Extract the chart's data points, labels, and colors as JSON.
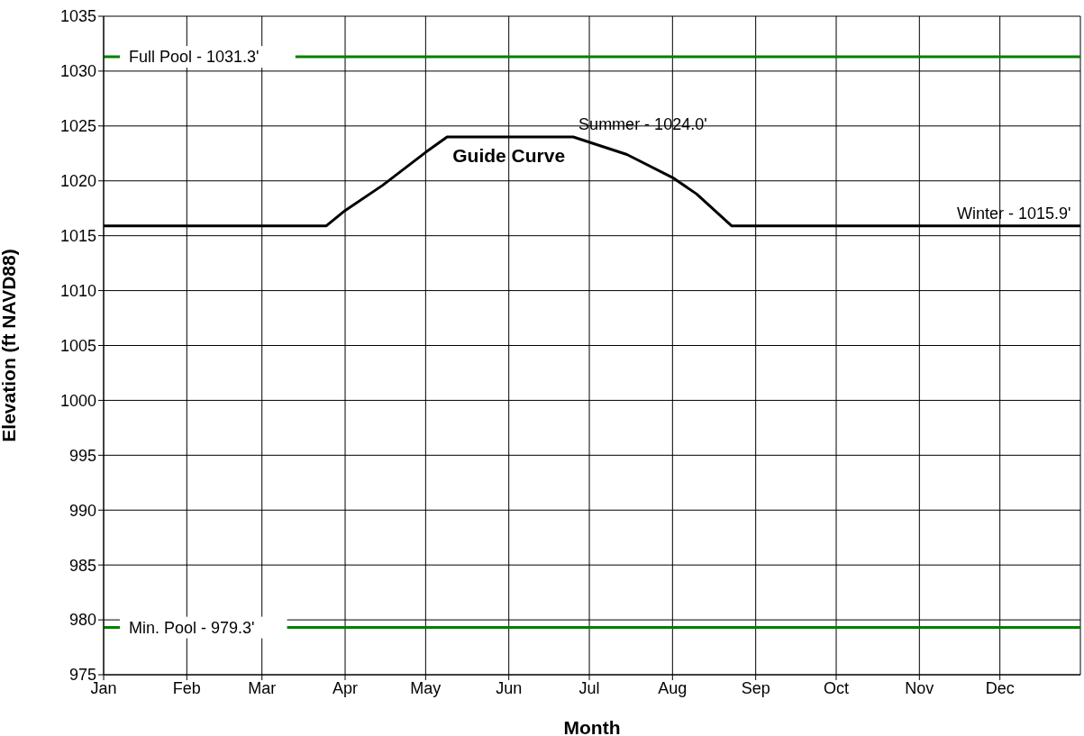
{
  "chart_data": {
    "type": "line",
    "xlabel": "Month",
    "ylabel": "Elevation (ft NAVD88)",
    "xlim": [
      "--01-01",
      "--12-31"
    ],
    "xticks": [
      {
        "value": "--01-01",
        "label": "Jan"
      },
      {
        "value": "--02-01",
        "label": "Feb"
      },
      {
        "value": "--03-01",
        "label": "Mar"
      },
      {
        "value": "--04-01",
        "label": "Apr"
      },
      {
        "value": "--05-01",
        "label": "May"
      },
      {
        "value": "--06-01",
        "label": "Jun"
      },
      {
        "value": "--07-01",
        "label": "Jul"
      },
      {
        "value": "--08-01",
        "label": "Aug"
      },
      {
        "value": "--09-01",
        "label": "Sep"
      },
      {
        "value": "--10-01",
        "label": "Oct"
      },
      {
        "value": "--11-01",
        "label": "Nov"
      },
      {
        "value": "--12-01",
        "label": "Dec"
      }
    ],
    "ylim": [
      975,
      1035
    ],
    "yticks": [
      975,
      980,
      985,
      990,
      995,
      1000,
      1005,
      1010,
      1015,
      1020,
      1025,
      1030,
      1035
    ],
    "grid": true,
    "marker": "none",
    "line_style": "solid",
    "series": [
      {
        "name": "Guide Curve",
        "color": "#000000",
        "x": [
          "--01-01",
          "--03-25",
          "--04-01",
          "--04-15",
          "--05-01",
          "--05-09",
          "--06-01",
          "--06-25",
          "--07-15",
          "--08-01",
          "--08-10",
          "--08-23",
          "--12-31"
        ],
        "values": [
          1015.9,
          1015.9,
          1017.3,
          1019.6,
          1022.6,
          1024.0,
          1024.0,
          1024.0,
          1022.4,
          1020.3,
          1018.8,
          1015.9,
          1015.9
        ]
      }
    ],
    "ref_lines": [
      {
        "axis": "y",
        "value": 1031.3,
        "label": "Full Pool - 1031.3'",
        "color": "#008000"
      },
      {
        "axis": "y",
        "value": 979.3,
        "label": "Min. Pool - 979.3'",
        "color": "#008000"
      }
    ],
    "annotations": [
      {
        "text": "Summer - 1024.0'",
        "x": "--06-27",
        "y": 1024.0
      },
      {
        "text": "Winter - 1015.9'",
        "x": "--11-15",
        "y": 1015.9
      }
    ]
  }
}
